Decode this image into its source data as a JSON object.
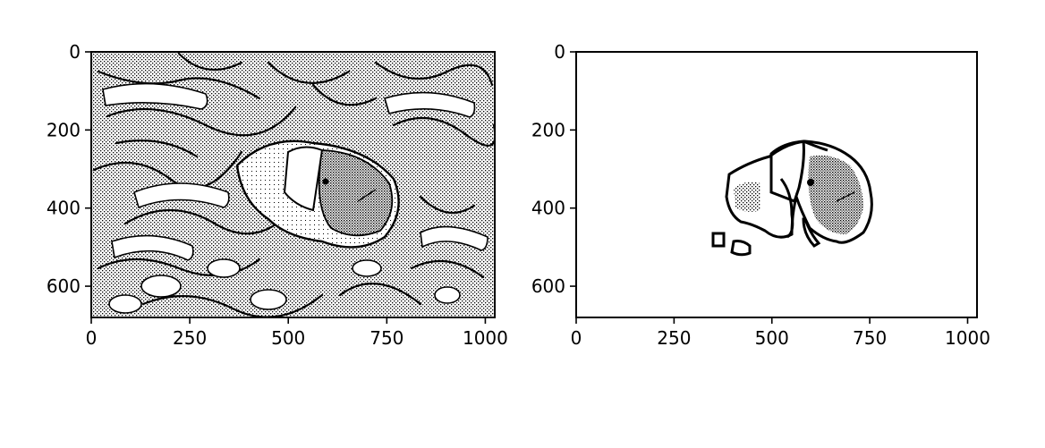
{
  "figure": {
    "background": "#ffffff",
    "ink": "#000000"
  },
  "panels": [
    {
      "name": "left-panel",
      "content": "dithered edge-detected photo of a clownfish among sea anemone tentacles",
      "xticks": [
        "0",
        "250",
        "500",
        "750",
        "1000"
      ],
      "yticks": [
        "0",
        "200",
        "400",
        "600"
      ],
      "xlim": [
        0,
        1024
      ],
      "ylim": [
        680,
        0
      ]
    },
    {
      "name": "right-panel",
      "content": "segmentation contour of the clownfish on white background",
      "xticks": [
        "0",
        "250",
        "500",
        "750",
        "1000"
      ],
      "yticks": [
        "0",
        "200",
        "400",
        "600"
      ],
      "xlim": [
        0,
        1024
      ],
      "ylim": [
        680,
        0
      ]
    }
  ]
}
